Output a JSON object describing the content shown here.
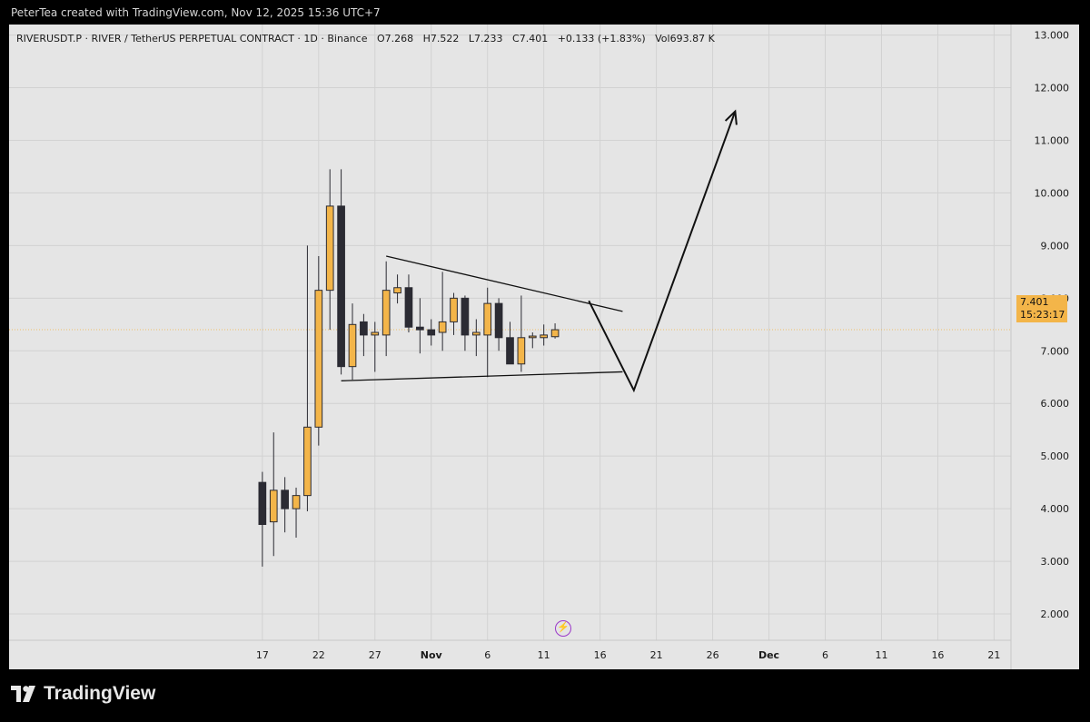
{
  "caption": "PeterTea created with TradingView.com, Nov 12, 2025 15:36 UTC+7",
  "legend": {
    "symbol": "RIVERUSDT.P · RIVER / TetherUS PERPETUAL CONTRACT · 1D · Binance",
    "open": "O7.268",
    "high": "H7.522",
    "low": "L7.233",
    "close": "C7.401",
    "change": "+0.133 (+1.83%)",
    "volume": "Vol693.87 K"
  },
  "price_tag": {
    "price": "7.401",
    "countdown": "15:23:17"
  },
  "logo_text": "TradingView",
  "colors": {
    "up": "#f3b549",
    "down": "#2b2b33",
    "wick": "#2b2b33",
    "background": "#e5e5e5",
    "grid": "#d2d2d2",
    "price_line": "#f3b549",
    "event_icon": "#9b38c9"
  },
  "icons": {
    "event_marker": "lightning-bolt-icon",
    "brand": "tradingview-logo-icon"
  },
  "chart_data": {
    "type": "candlestick",
    "y_axis": {
      "ticks": [
        2,
        3,
        4,
        5,
        6,
        7,
        8,
        9,
        10,
        11,
        12,
        13
      ],
      "tick_labels": [
        "2.000",
        "3.000",
        "4.000",
        "5.000",
        "6.000",
        "7.000",
        "8.000",
        "9.000",
        "10.000",
        "11.000",
        "12.000",
        "13.000"
      ],
      "range": [
        1.5,
        13.2
      ],
      "position": "right"
    },
    "x_axis": {
      "ticks": [
        {
          "day": 17,
          "label": "17"
        },
        {
          "day": 22,
          "label": "22"
        },
        {
          "day": 27,
          "label": "27"
        },
        {
          "day": 32,
          "label": "Nov"
        },
        {
          "day": 37,
          "label": "6"
        },
        {
          "day": 42,
          "label": "11"
        },
        {
          "day": 47,
          "label": "16"
        },
        {
          "day": 52,
          "label": "21"
        },
        {
          "day": 57,
          "label": "26"
        },
        {
          "day": 62,
          "label": "Dec"
        },
        {
          "day": 67,
          "label": "6"
        },
        {
          "day": 72,
          "label": "11"
        },
        {
          "day": 77,
          "label": "16"
        },
        {
          "day": 82,
          "label": "21"
        }
      ],
      "range": [
        -5.5,
        83.5
      ],
      "note": "day index counted from Oct 1, 2025"
    },
    "grid": true,
    "candles": [
      {
        "day": 17,
        "open": 4.5,
        "high": 4.7,
        "low": 2.9,
        "close": 3.7
      },
      {
        "day": 18,
        "open": 3.75,
        "high": 5.45,
        "low": 3.1,
        "close": 4.35
      },
      {
        "day": 19,
        "open": 4.35,
        "high": 4.6,
        "low": 3.55,
        "close": 4.0
      },
      {
        "day": 20,
        "open": 4.0,
        "high": 4.4,
        "low": 3.45,
        "close": 4.25
      },
      {
        "day": 21,
        "open": 4.25,
        "high": 9.0,
        "low": 3.95,
        "close": 5.55
      },
      {
        "day": 22,
        "open": 5.55,
        "high": 8.8,
        "low": 5.2,
        "close": 8.15
      },
      {
        "day": 23,
        "open": 8.15,
        "high": 10.45,
        "low": 7.4,
        "close": 9.75
      },
      {
        "day": 24,
        "open": 9.75,
        "high": 10.45,
        "low": 6.55,
        "close": 6.7
      },
      {
        "day": 25,
        "open": 6.7,
        "high": 7.9,
        "low": 6.45,
        "close": 7.5
      },
      {
        "day": 26,
        "open": 7.55,
        "high": 7.7,
        "low": 6.9,
        "close": 7.3
      },
      {
        "day": 27,
        "open": 7.3,
        "high": 7.55,
        "low": 6.6,
        "close": 7.35
      },
      {
        "day": 28,
        "open": 7.3,
        "high": 8.7,
        "low": 6.9,
        "close": 8.15
      },
      {
        "day": 29,
        "open": 8.1,
        "high": 8.45,
        "low": 7.9,
        "close": 8.2
      },
      {
        "day": 30,
        "open": 8.2,
        "high": 8.45,
        "low": 7.35,
        "close": 7.45
      },
      {
        "day": 31,
        "open": 7.45,
        "high": 8.0,
        "low": 6.95,
        "close": 7.4
      },
      {
        "day": 32,
        "open": 7.4,
        "high": 7.6,
        "low": 7.1,
        "close": 7.3
      },
      {
        "day": 33,
        "open": 7.35,
        "high": 8.5,
        "low": 7.0,
        "close": 7.55
      },
      {
        "day": 34,
        "open": 7.55,
        "high": 8.1,
        "low": 7.3,
        "close": 8.0
      },
      {
        "day": 35,
        "open": 8.0,
        "high": 8.05,
        "low": 7.0,
        "close": 7.3
      },
      {
        "day": 36,
        "open": 7.3,
        "high": 7.6,
        "low": 6.9,
        "close": 7.35
      },
      {
        "day": 37,
        "open": 7.3,
        "high": 8.2,
        "low": 6.5,
        "close": 7.9
      },
      {
        "day": 38,
        "open": 7.9,
        "high": 8.0,
        "low": 7.0,
        "close": 7.25
      },
      {
        "day": 39,
        "open": 7.25,
        "high": 7.55,
        "low": 6.75,
        "close": 6.75
      },
      {
        "day": 40,
        "open": 6.75,
        "high": 8.05,
        "low": 6.6,
        "close": 7.25
      },
      {
        "day": 41,
        "open": 7.25,
        "high": 7.35,
        "low": 7.05,
        "close": 7.28
      },
      {
        "day": 42,
        "open": 7.25,
        "high": 7.5,
        "low": 7.1,
        "close": 7.3
      },
      {
        "day": 43,
        "open": 7.268,
        "high": 7.522,
        "low": 7.233,
        "close": 7.401
      }
    ],
    "drawings": [
      {
        "kind": "trendline",
        "name": "upper-trendline",
        "points": [
          {
            "day": 28,
            "price": 8.8
          },
          {
            "day": 49,
            "price": 7.75
          }
        ]
      },
      {
        "kind": "trendline",
        "name": "lower-trendline",
        "points": [
          {
            "day": 24,
            "price": 6.43
          },
          {
            "day": 49,
            "price": 6.6
          }
        ]
      },
      {
        "kind": "projection-arrow",
        "name": "projection-arrow",
        "points": [
          {
            "day": 46,
            "price": 7.95
          },
          {
            "day": 50,
            "price": 6.25
          },
          {
            "day": 59,
            "price": 11.55
          }
        ]
      }
    ],
    "current_price": 7.401
  }
}
